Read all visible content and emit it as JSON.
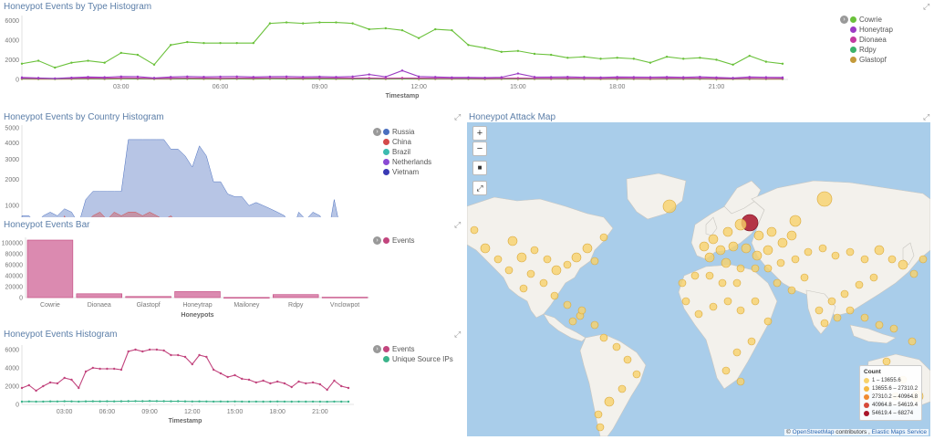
{
  "panel1": {
    "title": "Honeypot Events by Type Histogram",
    "xlabel": "Timestamp",
    "legend": [
      {
        "label": "Cowrie",
        "color": "#6ac13a"
      },
      {
        "label": "Honeytrap",
        "color": "#9b3bc4"
      },
      {
        "label": "Dionaea",
        "color": "#c43aa0"
      },
      {
        "label": "Rdpy",
        "color": "#3bb36a"
      },
      {
        "label": "Glastopf",
        "color": "#c49a3a"
      }
    ]
  },
  "panel2": {
    "title": "Honeypot Events by Country Histogram",
    "xlabel": "Timestamp",
    "legend": [
      {
        "label": "Russia",
        "color": "#4a6fbf"
      },
      {
        "label": "China",
        "color": "#d44a4a"
      },
      {
        "label": "Brazil",
        "color": "#3cbab0"
      },
      {
        "label": "Netherlands",
        "color": "#8a4ad4"
      },
      {
        "label": "Vietnam",
        "color": "#3a3ab4"
      }
    ]
  },
  "panel3": {
    "title": "Honeypot Events Bar",
    "xlabel": "Honeypots",
    "legend": [
      {
        "label": "Events",
        "color": "#c2457e"
      }
    ]
  },
  "panel4": {
    "title": "Honeypot Events Histogram",
    "xlabel": "Timestamp",
    "legend": [
      {
        "label": "Events",
        "color": "#c2457e"
      },
      {
        "label": "Unique Source IPs",
        "color": "#3bb38a"
      }
    ]
  },
  "map": {
    "title": "Honeypot Attack Map",
    "zoom_in": "+",
    "zoom_out": "−",
    "draw_rect": "■",
    "fit": "⤢",
    "legend_title": "Count",
    "legend": [
      {
        "label": "1 – 13655.6",
        "color": "#f7d26b"
      },
      {
        "label": "13655.6 – 27310.2",
        "color": "#f5b942"
      },
      {
        "label": "27310.2 – 40964.8",
        "color": "#f08a30"
      },
      {
        "label": "40964.8 – 54619.4",
        "color": "#d64a3a"
      },
      {
        "label": "54619.4 – 68274",
        "color": "#a8142a"
      }
    ],
    "attribution_symbol": "©",
    "attribution_link1": "OpenStreetMap",
    "attribution_text": " contributors , ",
    "attribution_link2": "Elastic Maps Service"
  },
  "chart_data": [
    {
      "type": "line",
      "title": "Honeypot Events by Type Histogram",
      "xlabel": "Timestamp",
      "x": [
        "00:00",
        "00:30",
        "01:00",
        "01:30",
        "02:00",
        "02:30",
        "03:00",
        "03:30",
        "04:00",
        "04:30",
        "05:00",
        "05:30",
        "06:00",
        "06:30",
        "07:00",
        "07:30",
        "08:00",
        "08:30",
        "09:00",
        "09:30",
        "10:00",
        "10:30",
        "11:00",
        "11:30",
        "12:00",
        "12:30",
        "13:00",
        "13:30",
        "14:00",
        "14:30",
        "15:00",
        "15:30",
        "16:00",
        "16:30",
        "17:00",
        "17:30",
        "18:00",
        "18:30",
        "19:00",
        "19:30",
        "20:00",
        "20:30",
        "21:00",
        "21:30",
        "22:00",
        "22:30",
        "23:00"
      ],
      "xticks": [
        "03:00",
        "06:00",
        "09:00",
        "12:00",
        "15:00",
        "18:00",
        "21:00"
      ],
      "yticks": [
        0,
        2000,
        4000,
        6000
      ],
      "ylim": [
        0,
        6500
      ],
      "series": [
        {
          "name": "Cowrie",
          "values": [
            1600,
            1900,
            1200,
            1700,
            1900,
            1700,
            2700,
            2500,
            1500,
            3500,
            3800,
            3700,
            3700,
            3700,
            3700,
            5700,
            5800,
            5700,
            5800,
            5800,
            5700,
            5100,
            5200,
            5000,
            4200,
            5100,
            5000,
            3500,
            3200,
            2800,
            2900,
            2600,
            2500,
            2200,
            2300,
            2100,
            2200,
            2100,
            1700,
            2300,
            2100,
            2200,
            2000,
            1500,
            2400,
            1800,
            1600
          ]
        },
        {
          "name": "Honeytrap",
          "values": [
            200,
            150,
            100,
            180,
            250,
            220,
            300,
            280,
            150,
            250,
            300,
            260,
            280,
            300,
            250,
            280,
            300,
            260,
            280,
            250,
            300,
            500,
            260,
            900,
            300,
            250,
            200,
            200,
            180,
            220,
            600,
            250,
            240,
            260,
            220,
            200,
            250,
            240,
            230,
            250,
            220,
            260,
            200,
            150,
            250,
            220,
            200
          ]
        },
        {
          "name": "Dionaea",
          "values": [
            120,
            100,
            90,
            110,
            130,
            120,
            150,
            140,
            100,
            120,
            140,
            130,
            120,
            140,
            130,
            150,
            140,
            130,
            150,
            140,
            130,
            140,
            120,
            140,
            130,
            120,
            110,
            120,
            100,
            120,
            130,
            120,
            110,
            120,
            110,
            100,
            120,
            110,
            100,
            120,
            110,
            120,
            100,
            90,
            110,
            100,
            100
          ]
        },
        {
          "name": "Rdpy",
          "values": [
            80,
            70,
            60,
            80,
            90,
            80,
            100,
            90,
            70,
            80,
            90,
            85,
            80,
            90,
            85,
            100,
            90,
            85,
            90,
            85,
            80,
            90,
            80,
            90,
            85,
            80,
            75,
            80,
            70,
            80,
            85,
            80,
            75,
            80,
            75,
            70,
            80,
            75,
            70,
            80,
            75,
            80,
            70,
            60,
            75,
            70,
            70
          ]
        },
        {
          "name": "Glastopf",
          "values": [
            40,
            30,
            30,
            40,
            50,
            40,
            60,
            50,
            40,
            40,
            50,
            45,
            40,
            50,
            45,
            60,
            50,
            45,
            50,
            45,
            40,
            50,
            40,
            50,
            45,
            40,
            35,
            40,
            30,
            40,
            45,
            40,
            35,
            40,
            35,
            30,
            40,
            35,
            30,
            40,
            35,
            40,
            30,
            30,
            35,
            30,
            30
          ]
        }
      ]
    },
    {
      "type": "area",
      "title": "Honeypot Events by Country Histogram",
      "xlabel": "Timestamp",
      "x": [
        "00:00",
        "00:30",
        "01:00",
        "01:30",
        "02:00",
        "02:30",
        "03:00",
        "03:30",
        "04:00",
        "04:30",
        "05:00",
        "05:30",
        "06:00",
        "06:30",
        "07:00",
        "07:30",
        "08:00",
        "08:30",
        "09:00",
        "09:30",
        "10:00",
        "10:30",
        "11:00",
        "11:30",
        "12:00",
        "12:30",
        "13:00",
        "13:30",
        "14:00",
        "14:30",
        "15:00",
        "15:30",
        "16:00",
        "16:30",
        "17:00",
        "17:30",
        "18:00",
        "18:30",
        "19:00",
        "19:30",
        "20:00",
        "20:30",
        "21:00",
        "21:30",
        "22:00",
        "22:30",
        "23:00"
      ],
      "xticks": [
        "03:00",
        "06:00",
        "09:00",
        "12:00",
        "15:00",
        "18:00",
        "21:00"
      ],
      "yticks": [
        0,
        1000,
        2000,
        3000,
        4000,
        5000
      ],
      "yscale": "sqrt",
      "ylim": [
        0,
        5200
      ],
      "series": [
        {
          "name": "Russia",
          "values": [
            700,
            700,
            500,
            700,
            800,
            700,
            900,
            800,
            500,
            1200,
            1500,
            1500,
            1500,
            1500,
            1500,
            4200,
            4200,
            4200,
            4200,
            4200,
            4200,
            3600,
            3600,
            3200,
            2600,
            3800,
            3200,
            1900,
            1900,
            1400,
            1300,
            1300,
            1000,
            1100,
            1000,
            900,
            800,
            700,
            300,
            800,
            600,
            800,
            700,
            200,
            1200,
            300,
            300
          ]
        },
        {
          "name": "China",
          "values": [
            300,
            400,
            200,
            300,
            300,
            200,
            700,
            300,
            200,
            500,
            700,
            800,
            600,
            800,
            700,
            800,
            800,
            700,
            800,
            700,
            600,
            700,
            500,
            300,
            200,
            300,
            200,
            300,
            200,
            200,
            300,
            200,
            100,
            200,
            100,
            200,
            200,
            100,
            100,
            200,
            100,
            200,
            100,
            50,
            100,
            50,
            50
          ]
        },
        {
          "name": "Brazil",
          "values": [
            200,
            300,
            100,
            200,
            300,
            200,
            500,
            300,
            100,
            300,
            400,
            500,
            400,
            300,
            400,
            500,
            400,
            300,
            400,
            300,
            300,
            400,
            300,
            300,
            200,
            400,
            300,
            300,
            600,
            300,
            200,
            300,
            400,
            300,
            200,
            300,
            500,
            300,
            200,
            200,
            300,
            300,
            200,
            100,
            500,
            300,
            600
          ]
        },
        {
          "name": "Netherlands",
          "values": [
            150,
            200,
            100,
            150,
            200,
            100,
            300,
            250,
            100,
            200,
            300,
            250,
            200,
            250,
            300,
            400,
            300,
            250,
            300,
            250,
            200,
            300,
            200,
            250,
            200,
            300,
            250,
            200,
            300,
            200,
            400,
            250,
            200,
            250,
            200,
            300,
            250,
            200,
            150,
            300,
            250,
            200,
            150,
            100,
            200,
            150,
            100
          ]
        },
        {
          "name": "Vietnam",
          "values": [
            100,
            150,
            80,
            100,
            150,
            80,
            200,
            150,
            80,
            150,
            200,
            150,
            150,
            200,
            150,
            250,
            200,
            150,
            200,
            150,
            150,
            200,
            150,
            200,
            150,
            200,
            150,
            150,
            200,
            150,
            300,
            200,
            150,
            200,
            150,
            200,
            150,
            150,
            100,
            200,
            150,
            150,
            100,
            80,
            150,
            100,
            80
          ]
        }
      ]
    },
    {
      "type": "bar",
      "title": "Honeypot Events Bar",
      "xlabel": "Honeypots",
      "categories": [
        "Cowrie",
        "Dionaea",
        "Glastopf",
        "Honeytrap",
        "Mailoney",
        "Rdpy",
        "Vnclowpot"
      ],
      "values": [
        105000,
        7000,
        2000,
        11000,
        300,
        5500,
        800
      ],
      "yticks": [
        0,
        20000,
        40000,
        60000,
        80000,
        100000
      ],
      "ylim": [
        0,
        110000
      ]
    },
    {
      "type": "line",
      "title": "Honeypot Events Histogram",
      "xlabel": "Timestamp",
      "x": [
        "00:00",
        "00:30",
        "01:00",
        "01:30",
        "02:00",
        "02:30",
        "03:00",
        "03:30",
        "04:00",
        "04:30",
        "05:00",
        "05:30",
        "06:00",
        "06:30",
        "07:00",
        "07:30",
        "08:00",
        "08:30",
        "09:00",
        "09:30",
        "10:00",
        "10:30",
        "11:00",
        "11:30",
        "12:00",
        "12:30",
        "13:00",
        "13:30",
        "14:00",
        "14:30",
        "15:00",
        "15:30",
        "16:00",
        "16:30",
        "17:00",
        "17:30",
        "18:00",
        "18:30",
        "19:00",
        "19:30",
        "20:00",
        "20:30",
        "21:00",
        "21:30",
        "22:00",
        "22:30",
        "23:00"
      ],
      "xticks": [
        "03:00",
        "06:00",
        "09:00",
        "12:00",
        "15:00",
        "18:00",
        "21:00"
      ],
      "yticks": [
        0,
        2000,
        4000,
        6000
      ],
      "ylim": [
        0,
        6500
      ],
      "series": [
        {
          "name": "Events",
          "values": [
            1800,
            2100,
            1500,
            2000,
            2400,
            2300,
            2900,
            2700,
            1800,
            3600,
            4000,
            3900,
            3900,
            3900,
            3800,
            5800,
            6000,
            5800,
            6000,
            6000,
            5900,
            5400,
            5400,
            5200,
            4400,
            5400,
            5200,
            3800,
            3400,
            3000,
            3200,
            2800,
            2700,
            2400,
            2600,
            2300,
            2500,
            2300,
            1900,
            2500,
            2300,
            2400,
            2200,
            1600,
            2600,
            2000,
            1800
          ]
        },
        {
          "name": "Unique Source IPs",
          "values": [
            300,
            320,
            300,
            310,
            330,
            320,
            340,
            330,
            310,
            330,
            340,
            330,
            340,
            330,
            340,
            350,
            360,
            350,
            370,
            360,
            350,
            340,
            350,
            330,
            320,
            330,
            320,
            310,
            320,
            310,
            320,
            310,
            300,
            310,
            300,
            310,
            320,
            310,
            300,
            310,
            300,
            310,
            300,
            290,
            310,
            300,
            300
          ]
        }
      ]
    }
  ]
}
